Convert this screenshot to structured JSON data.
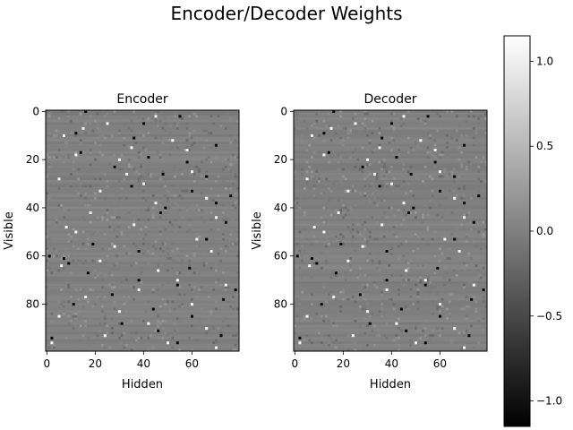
{
  "figure": {
    "suptitle": "Encoder/Decoder Weights"
  },
  "chart_data": [
    {
      "type": "heatmap",
      "title": "Encoder",
      "xlabel": "Hidden",
      "ylabel": "Visible",
      "shape": [
        100,
        80
      ],
      "xlim": [
        -0.5,
        79.5
      ],
      "ylim": [
        99.5,
        -0.5
      ],
      "xticks": [
        0,
        20,
        40,
        60
      ],
      "yticks": [
        0,
        20,
        40,
        60,
        80
      ],
      "colormap": "gray",
      "background_value": 0.0,
      "bright_cells": [
        [
          5,
          25
        ],
        [
          7,
          15
        ],
        [
          10,
          7
        ],
        [
          12,
          52
        ],
        [
          15,
          35
        ],
        [
          16,
          58
        ],
        [
          18,
          12
        ],
        [
          20,
          30
        ],
        [
          25,
          60
        ],
        [
          28,
          5
        ],
        [
          30,
          40
        ],
        [
          33,
          22
        ],
        [
          36,
          66
        ],
        [
          38,
          45
        ],
        [
          42,
          18
        ],
        [
          44,
          70
        ],
        [
          47,
          36
        ],
        [
          50,
          12
        ],
        [
          53,
          62
        ],
        [
          56,
          28
        ],
        [
          58,
          68
        ],
        [
          62,
          22
        ],
        [
          64,
          6
        ],
        [
          66,
          46
        ],
        [
          70,
          54
        ],
        [
          74,
          38
        ],
        [
          77,
          16
        ],
        [
          80,
          60
        ],
        [
          83,
          30
        ],
        [
          85,
          5
        ],
        [
          88,
          42
        ],
        [
          90,
          66
        ],
        [
          93,
          24
        ],
        [
          96,
          50
        ],
        [
          98,
          70
        ],
        [
          2,
          45
        ],
        [
          26,
          33
        ],
        [
          48,
          8
        ],
        [
          72,
          74
        ],
        [
          96,
          2
        ]
      ],
      "dark_cells": [
        [
          0,
          16
        ],
        [
          2,
          55
        ],
        [
          5,
          40
        ],
        [
          9,
          12
        ],
        [
          11,
          36
        ],
        [
          14,
          70
        ],
        [
          17,
          14
        ],
        [
          19,
          42
        ],
        [
          21,
          58
        ],
        [
          23,
          28
        ],
        [
          26,
          48
        ],
        [
          27,
          66
        ],
        [
          31,
          35
        ],
        [
          33,
          60
        ],
        [
          35,
          76
        ],
        [
          38,
          70
        ],
        [
          40,
          49
        ],
        [
          42,
          47
        ],
        [
          46,
          74
        ],
        [
          53,
          66
        ],
        [
          55,
          19
        ],
        [
          58,
          38
        ],
        [
          60,
          1
        ],
        [
          61,
          7
        ],
        [
          63,
          9
        ],
        [
          65,
          59
        ],
        [
          67,
          17
        ],
        [
          70,
          38
        ],
        [
          72,
          54
        ],
        [
          74,
          78
        ],
        [
          76,
          27
        ],
        [
          78,
          73
        ],
        [
          80,
          11
        ],
        [
          82,
          44
        ],
        [
          85,
          60
        ],
        [
          88,
          31
        ],
        [
          91,
          46
        ],
        [
          93,
          72
        ],
        [
          94,
          2
        ],
        [
          96,
          54
        ]
      ],
      "color_range": [
        -1.15,
        1.15
      ]
    },
    {
      "type": "heatmap",
      "title": "Decoder",
      "xlabel": "Hidden",
      "ylabel": "Visible",
      "shape": [
        100,
        80
      ],
      "xlim": [
        -0.5,
        79.5
      ],
      "ylim": [
        99.5,
        -0.5
      ],
      "xticks": [
        0,
        20,
        40,
        60
      ],
      "yticks": [
        0,
        20,
        40,
        60,
        80
      ],
      "colormap": "gray",
      "background_value": 0.0,
      "bright_cells": [
        [
          5,
          25
        ],
        [
          7,
          15
        ],
        [
          10,
          7
        ],
        [
          12,
          52
        ],
        [
          15,
          35
        ],
        [
          16,
          58
        ],
        [
          18,
          12
        ],
        [
          20,
          30
        ],
        [
          25,
          60
        ],
        [
          28,
          5
        ],
        [
          30,
          40
        ],
        [
          33,
          22
        ],
        [
          36,
          66
        ],
        [
          38,
          45
        ],
        [
          42,
          18
        ],
        [
          44,
          70
        ],
        [
          47,
          36
        ],
        [
          50,
          12
        ],
        [
          53,
          62
        ],
        [
          56,
          28
        ],
        [
          58,
          68
        ],
        [
          62,
          22
        ],
        [
          64,
          6
        ],
        [
          66,
          46
        ],
        [
          70,
          54
        ],
        [
          74,
          38
        ],
        [
          77,
          16
        ],
        [
          80,
          60
        ],
        [
          83,
          30
        ],
        [
          85,
          5
        ],
        [
          88,
          42
        ],
        [
          90,
          66
        ],
        [
          93,
          24
        ],
        [
          96,
          50
        ],
        [
          98,
          70
        ],
        [
          2,
          45
        ],
        [
          26,
          33
        ],
        [
          48,
          8
        ],
        [
          72,
          74
        ],
        [
          96,
          2
        ]
      ],
      "dark_cells": [
        [
          0,
          16
        ],
        [
          2,
          55
        ],
        [
          5,
          40
        ],
        [
          9,
          12
        ],
        [
          11,
          36
        ],
        [
          14,
          70
        ],
        [
          17,
          14
        ],
        [
          19,
          42
        ],
        [
          21,
          58
        ],
        [
          23,
          28
        ],
        [
          26,
          48
        ],
        [
          27,
          66
        ],
        [
          31,
          35
        ],
        [
          33,
          60
        ],
        [
          35,
          76
        ],
        [
          38,
          70
        ],
        [
          40,
          49
        ],
        [
          42,
          47
        ],
        [
          46,
          74
        ],
        [
          53,
          66
        ],
        [
          55,
          19
        ],
        [
          58,
          38
        ],
        [
          60,
          1
        ],
        [
          61,
          7
        ],
        [
          63,
          9
        ],
        [
          65,
          59
        ],
        [
          67,
          17
        ],
        [
          70,
          38
        ],
        [
          72,
          54
        ],
        [
          74,
          78
        ],
        [
          76,
          27
        ],
        [
          78,
          73
        ],
        [
          80,
          11
        ],
        [
          82,
          44
        ],
        [
          85,
          60
        ],
        [
          88,
          31
        ],
        [
          91,
          46
        ],
        [
          93,
          72
        ],
        [
          94,
          2
        ],
        [
          96,
          54
        ]
      ],
      "color_range": [
        -1.15,
        1.15
      ]
    }
  ],
  "colorbar": {
    "ticks": [
      1.0,
      0.5,
      0.0,
      -0.5,
      -1.0
    ],
    "tick_labels": [
      "1.0",
      "0.5",
      "0.0",
      "−0.5",
      "−1.0"
    ],
    "range": [
      -1.15,
      1.15
    ],
    "colormap": "gray"
  }
}
